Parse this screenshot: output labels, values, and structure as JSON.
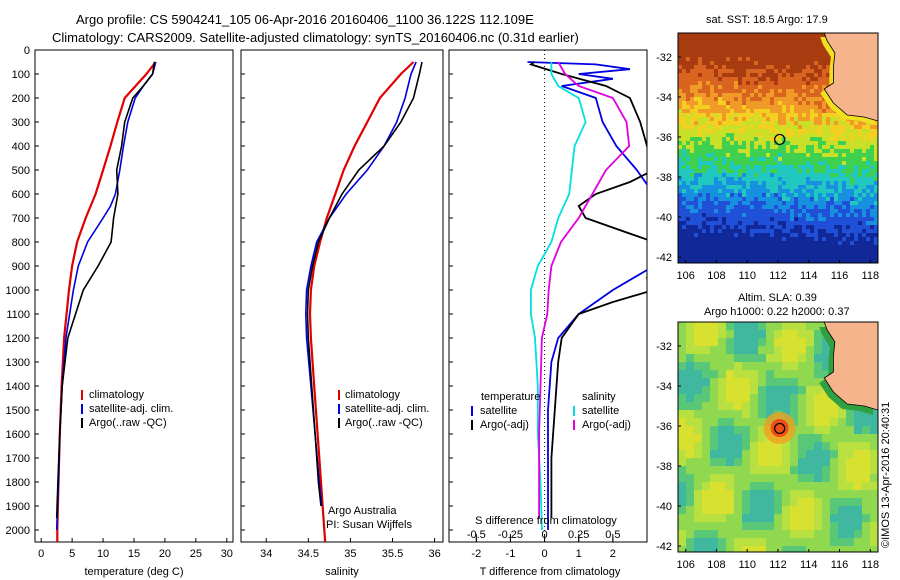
{
  "header": {
    "line1": "Argo profile: CS 5904241_105 06-Apr-2016 20160406_1100 36.122S 112.109E",
    "line2": "Climatology: CARS2009. Satellite-adjusted climatology: synTS_20160406.nc (0.31d earlier)"
  },
  "colors": {
    "climatology": "#e00000",
    "satellite": "#0000e0",
    "argo": "#000000",
    "sat_salinity": "#00e0e0",
    "argo_salinity": "#e000e0",
    "land": "#f5b48c"
  },
  "legend_profiles": [
    "climatology",
    "satellite-adj. clim.",
    "Argo(..raw -QC)"
  ],
  "legend_diff": {
    "temperature_head": "temperature",
    "salinity_head": "salinity",
    "satellite": "satellite",
    "argo": "Argo(-adj)"
  },
  "credit": {
    "line1": "Argo Australia",
    "line2": "PI: Susan Wijffels"
  },
  "stamp": "©IMOS 13-Apr-2016 20:40:31",
  "maps": {
    "sst_title": "sat. SST: 18.5 Argo: 17.9",
    "sla_title1": "Altim. SLA: 0.39",
    "sla_title2": "Argo h1000: 0.22 h2000: 0.37",
    "xticks": [
      "106",
      "108",
      "110",
      "112",
      "114",
      "116",
      "118"
    ],
    "yticks": [
      "-32",
      "-34",
      "-36",
      "-38",
      "-40",
      "-42"
    ]
  },
  "chart_data": [
    {
      "type": "line",
      "title": "",
      "xlabel": "temperature (deg C)",
      "ylabel": "",
      "xlim": [
        -1,
        31
      ],
      "ylim": [
        2050,
        0
      ],
      "xticks": [
        "0",
        "5",
        "10",
        "15",
        "20",
        "25",
        "30"
      ],
      "yticks": [
        "0",
        "100",
        "200",
        "300",
        "400",
        "500",
        "600",
        "700",
        "800",
        "900",
        "1000",
        "1100",
        "1200",
        "1300",
        "1400",
        "1500",
        "1600",
        "1700",
        "1800",
        "1900",
        "2000"
      ],
      "series": [
        {
          "name": "climatology",
          "color": "#e00000",
          "depth": [
            50,
            100,
            200,
            300,
            400,
            500,
            600,
            700,
            800,
            900,
            1000,
            1200,
            1400,
            1600,
            1800,
            2000,
            2050
          ],
          "values": [
            18.5,
            17,
            13.5,
            12.3,
            11.2,
            10,
            8.8,
            7.2,
            5.8,
            5,
            4.5,
            3.7,
            3.3,
            3,
            2.8,
            2.6,
            2.6
          ]
        },
        {
          "name": "satellite-adj. clim.",
          "color": "#0000e0",
          "depth": [
            50,
            100,
            150,
            200,
            300,
            400,
            500,
            600,
            650,
            700,
            800,
            900,
            1000,
            1200,
            1400,
            1600,
            1800,
            2000
          ],
          "values": [
            18.5,
            18,
            16.5,
            15.2,
            14,
            13.3,
            12.7,
            12,
            11.2,
            10,
            7.5,
            6,
            5.2,
            4,
            3.4,
            3,
            2.8,
            2.5
          ]
        },
        {
          "name": "Argo(..raw -QC)",
          "color": "#000000",
          "depth": [
            50,
            100,
            150,
            200,
            300,
            400,
            500,
            600,
            700,
            800,
            900,
            1000,
            1200,
            1400,
            1600,
            1800,
            1950
          ],
          "values": [
            18.3,
            18,
            16.5,
            14.8,
            13.5,
            13,
            12.2,
            12.4,
            11.7,
            11.3,
            9.2,
            6.8,
            4.3,
            3.4,
            3,
            2.7,
            2.5
          ]
        }
      ]
    },
    {
      "type": "line",
      "title": "",
      "xlabel": "salinity",
      "ylabel": "",
      "xlim": [
        33.7,
        36.1
      ],
      "xticks": [
        "34",
        "34.5",
        "35",
        "35.5",
        "36"
      ],
      "series": [
        {
          "name": "climatology",
          "color": "#e00000",
          "depth": [
            50,
            100,
            200,
            300,
            400,
            500,
            600,
            700,
            800,
            900,
            1000,
            1100,
            1200,
            1400,
            1600,
            1800,
            2000,
            2050
          ],
          "values": [
            35.75,
            35.6,
            35.35,
            35.2,
            35.05,
            34.92,
            34.82,
            34.72,
            34.64,
            34.57,
            34.53,
            34.52,
            34.53,
            34.57,
            34.61,
            34.65,
            34.69,
            34.7
          ]
        },
        {
          "name": "satellite-adj. clim.",
          "color": "#0000e0",
          "depth": [
            50,
            100,
            200,
            300,
            400,
            500,
            600,
            700,
            800,
            900,
            1000,
            1100,
            1200,
            1400,
            1600,
            1800,
            1900
          ],
          "values": [
            35.78,
            35.72,
            35.65,
            35.55,
            35.4,
            35.2,
            34.95,
            34.75,
            34.6,
            34.53,
            34.48,
            34.47,
            34.48,
            34.53,
            34.58,
            34.63,
            34.66
          ]
        },
        {
          "name": "Argo(..raw -QC)",
          "color": "#000000",
          "depth": [
            50,
            100,
            200,
            300,
            400,
            500,
            600,
            700,
            800,
            900,
            1000,
            1100,
            1200,
            1400,
            1600,
            1800,
            1900
          ],
          "values": [
            35.85,
            35.82,
            35.75,
            35.6,
            35.4,
            35.1,
            34.9,
            34.75,
            34.62,
            34.55,
            34.5,
            34.49,
            34.5,
            34.54,
            34.58,
            34.62,
            34.65
          ]
        }
      ]
    },
    {
      "type": "line",
      "title": "",
      "xlabel": "T difference from climatology",
      "xlabel_top": "S difference from climatology",
      "xlim_T": [
        -2.8,
        3
      ],
      "xlim_S": [
        -0.7,
        0.75
      ],
      "xticks": [
        "-2",
        "-1",
        "0",
        "1",
        "2"
      ],
      "xticks_S": [
        "-0.5",
        "-0.25",
        "0",
        "0.25",
        "0.5"
      ],
      "series": [
        {
          "name": "satellite",
          "quantity": "temperature",
          "color": "#0000e0",
          "depth": [
            50,
            60,
            80,
            100,
            120,
            150,
            200,
            300,
            400,
            500,
            600,
            700,
            800,
            900,
            1000,
            1050,
            1100,
            1150,
            1200,
            1300,
            1500,
            1700,
            1900,
            2000
          ],
          "values": [
            -0.5,
            1.5,
            2.5,
            1.0,
            2.0,
            0.5,
            1.5,
            1.7,
            2.1,
            2.7,
            3.2,
            3.5,
            3.5,
            3.2,
            2.0,
            1.5,
            1.0,
            0.7,
            0.4,
            0.2,
            0.1,
            0.1,
            0.1,
            0.1
          ]
        },
        {
          "name": "Argo(-adj)",
          "quantity": "temperature",
          "color": "#000000",
          "depth": [
            50,
            60,
            100,
            150,
            200,
            300,
            400,
            500,
            550,
            600,
            650,
            700,
            800,
            900,
            950,
            1000,
            1050,
            1100,
            1200,
            1300,
            1500,
            1700,
            1900,
            1950
          ],
          "values": [
            -0.3,
            -0.4,
            0.5,
            1.8,
            2.5,
            2.8,
            3.0,
            3.2,
            2.5,
            1.5,
            1.0,
            1.2,
            3.2,
            3.5,
            3.0,
            3.2,
            2.0,
            1.0,
            0.5,
            0.4,
            0.3,
            0.2,
            0.2,
            0.2
          ]
        },
        {
          "name": "satellite",
          "quantity": "salinity",
          "color": "#00e0e0",
          "depth": [
            50,
            100,
            150,
            200,
            300,
            400,
            500,
            600,
            700,
            800,
            900,
            1000,
            1100,
            1200,
            1400,
            1600,
            1800,
            2000
          ],
          "values": [
            0.05,
            0.05,
            0.1,
            0.25,
            0.3,
            0.22,
            0.2,
            0.18,
            0.1,
            0.05,
            -0.05,
            -0.1,
            -0.1,
            -0.07,
            -0.05,
            -0.05,
            -0.03,
            -0.02
          ]
        },
        {
          "name": "Argo(-adj)",
          "quantity": "salinity",
          "color": "#e000e0",
          "depth": [
            50,
            100,
            150,
            200,
            300,
            400,
            500,
            600,
            700,
            800,
            900,
            1000,
            1100,
            1200,
            1400,
            1600,
            1800,
            1950
          ],
          "values": [
            0.1,
            0.15,
            0.25,
            0.5,
            0.6,
            0.62,
            0.45,
            0.35,
            0.25,
            0.12,
            0.05,
            0.03,
            0.02,
            -0.02,
            -0.03,
            -0.04,
            -0.04,
            -0.04
          ]
        }
      ]
    }
  ]
}
